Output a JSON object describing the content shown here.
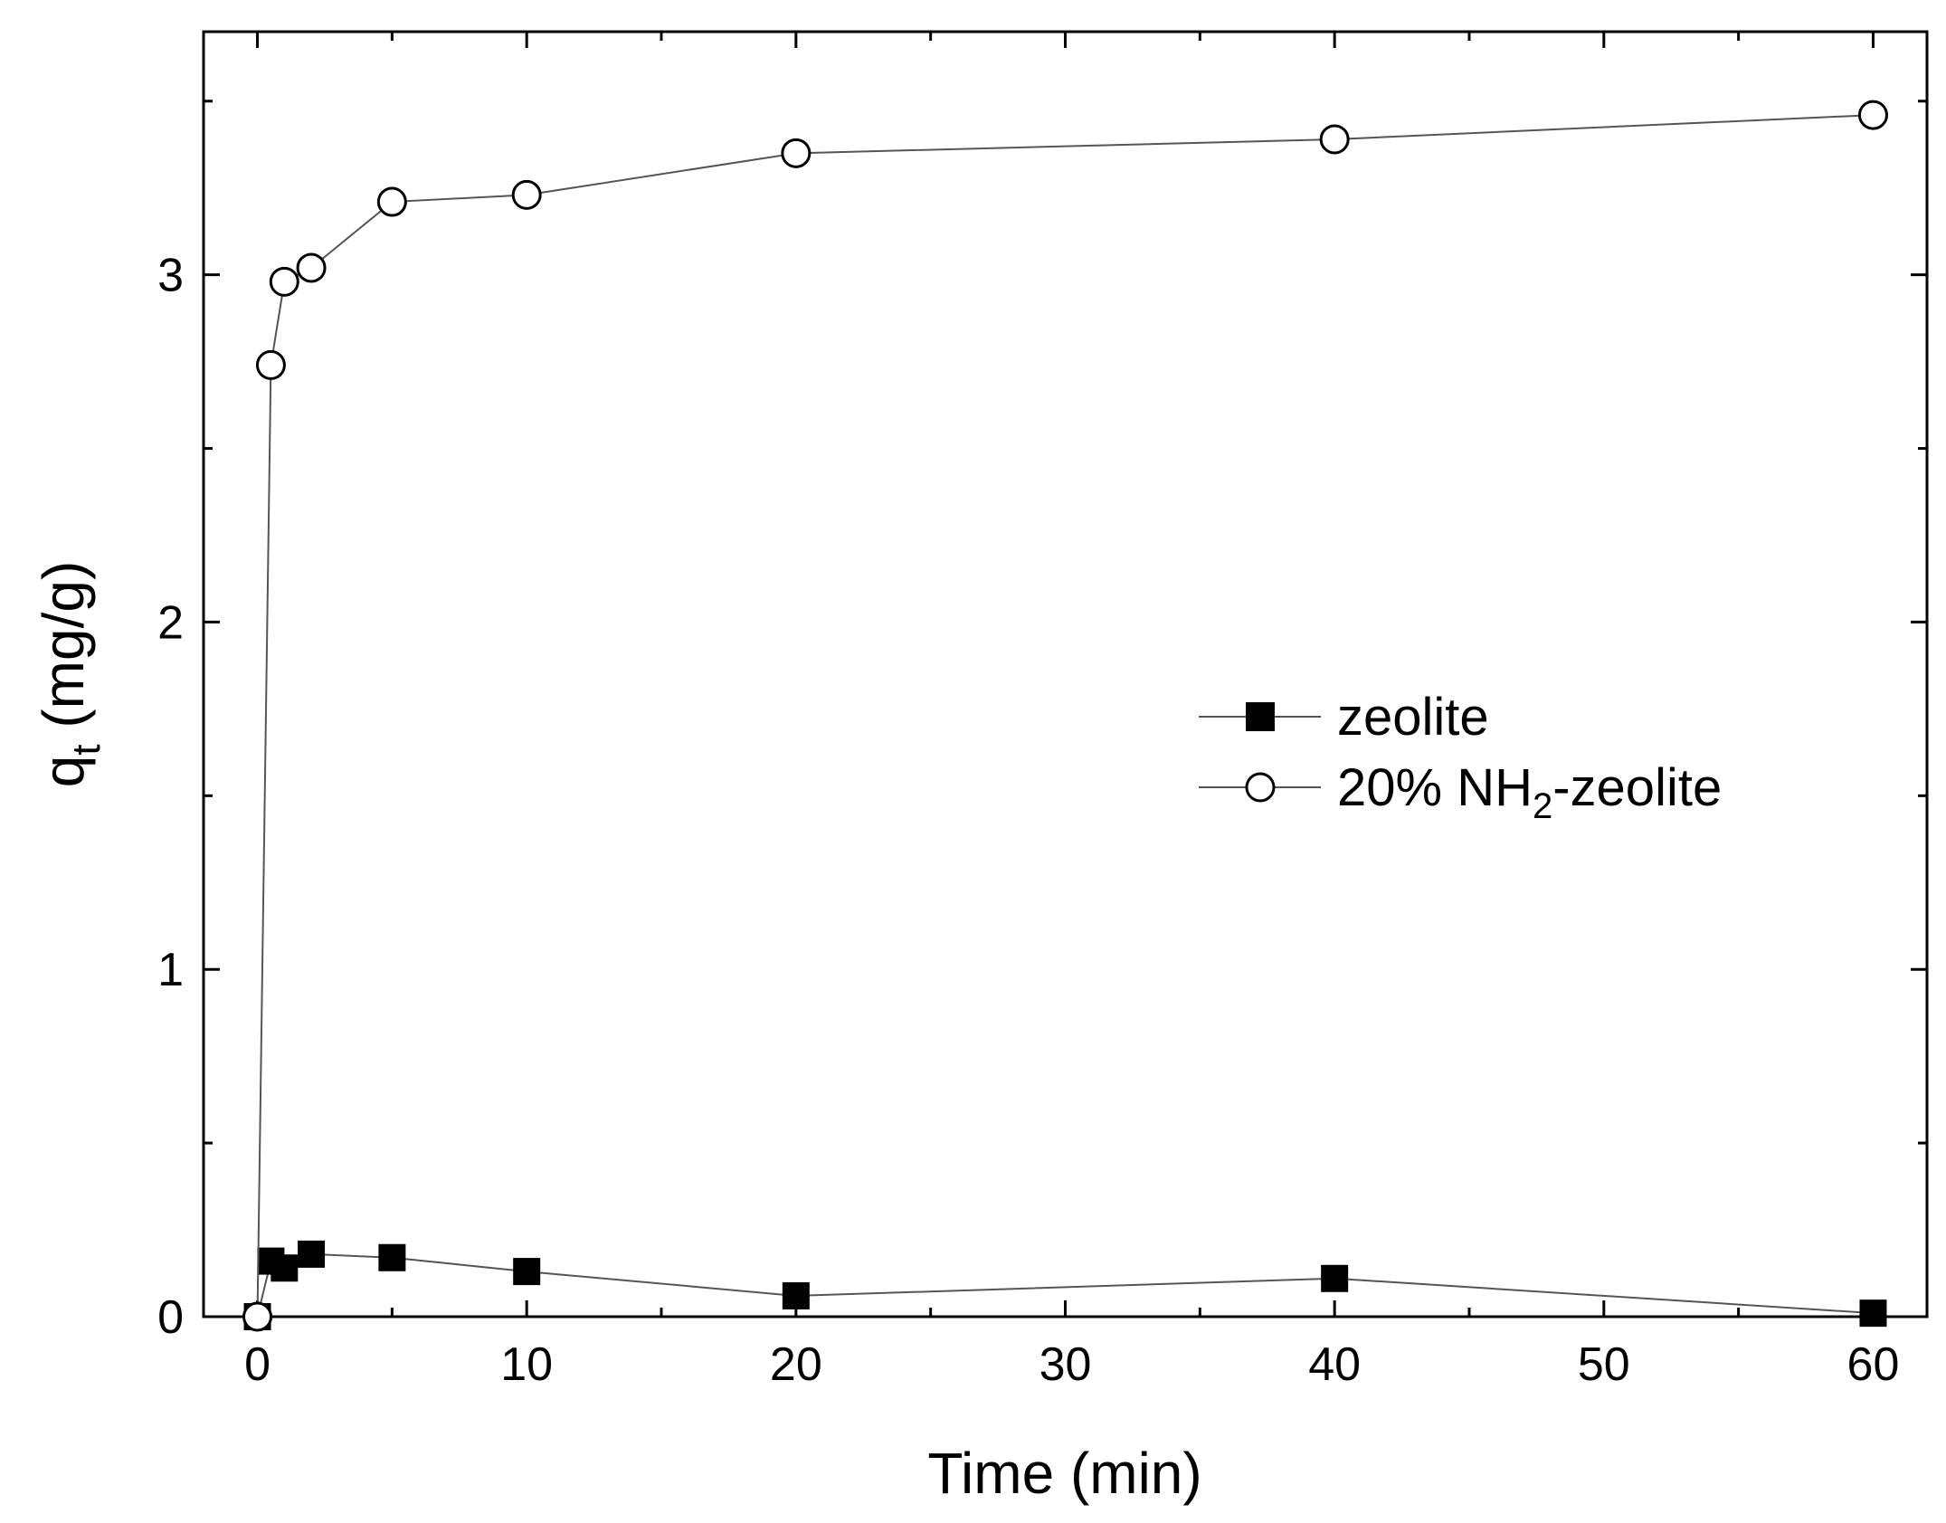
{
  "chart_data": {
    "type": "line",
    "xlabel": "Time (min)",
    "ylabel_main": "q",
    "ylabel_sub": "t",
    "ylabel_unit": " (mg/g)",
    "xlim": [
      -2,
      62
    ],
    "ylim": [
      0,
      3.7
    ],
    "x_major_ticks": [
      0,
      10,
      20,
      30,
      40,
      50,
      60
    ],
    "x_minor_ticks": [
      5,
      15,
      25,
      35,
      45,
      55
    ],
    "y_major_ticks": [
      0,
      1,
      2,
      3
    ],
    "y_minor_ticks": [
      0.5,
      1.5,
      2.5,
      3.5
    ],
    "grid": false,
    "legend_position": "center-right",
    "series": [
      {
        "name": "zeolite",
        "marker": "filled-square",
        "x": [
          0,
          0.5,
          1,
          2,
          5,
          10,
          20,
          40,
          60
        ],
        "y": [
          0,
          0.16,
          0.14,
          0.18,
          0.17,
          0.13,
          0.06,
          0.11,
          0.01
        ]
      },
      {
        "name_prefix": "20% NH",
        "name_sub": "2",
        "name_suffix": "-zeolite",
        "marker": "open-circle",
        "x": [
          0,
          0.5,
          1,
          2,
          5,
          10,
          20,
          40,
          60
        ],
        "y": [
          0,
          2.74,
          2.98,
          3.02,
          3.21,
          3.23,
          3.35,
          3.39,
          3.46
        ]
      }
    ]
  }
}
